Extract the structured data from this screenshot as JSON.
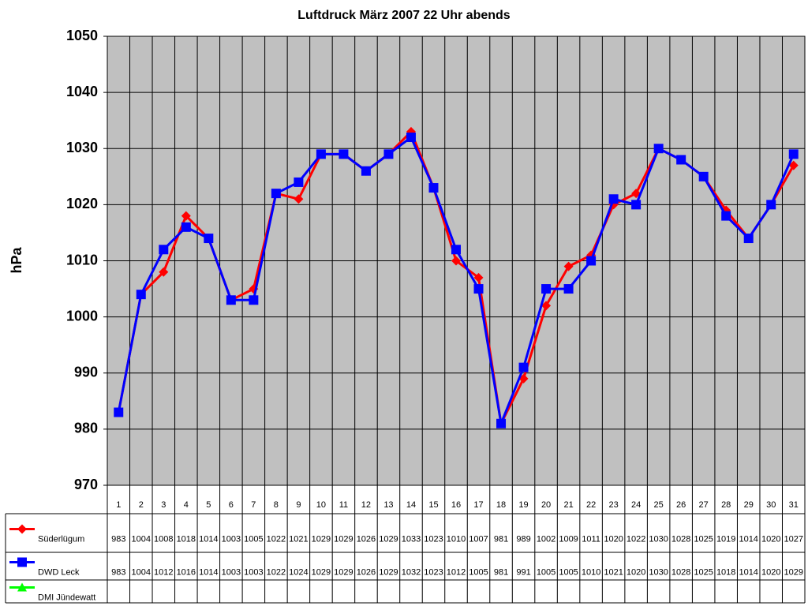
{
  "chart_data": {
    "type": "line",
    "title": "Luftdruck März 2007 22 Uhr abends",
    "y_label": "hPa",
    "categories": [
      "1",
      "2",
      "3",
      "4",
      "5",
      "6",
      "7",
      "8",
      "9",
      "10",
      "11",
      "12",
      "13",
      "14",
      "15",
      "16",
      "17",
      "18",
      "19",
      "20",
      "21",
      "22",
      "23",
      "24",
      "25",
      "26",
      "27",
      "28",
      "29",
      "30",
      "31"
    ],
    "series": [
      {
        "name": "Süderlügum",
        "color": "#ff0000",
        "marker": "diamond",
        "values": [
          983,
          1004,
          1008,
          1018,
          1014,
          1003,
          1005,
          1022,
          1021,
          1029,
          1029,
          1026,
          1029,
          1033,
          1023,
          1010,
          1007,
          981,
          989,
          1002,
          1009,
          1011,
          1020,
          1022,
          1030,
          1028,
          1025,
          1019,
          1014,
          1020,
          1027
        ]
      },
      {
        "name": "DWD Leck",
        "color": "#0000ff",
        "marker": "square",
        "values": [
          983,
          1004,
          1012,
          1016,
          1014,
          1003,
          1003,
          1022,
          1024,
          1029,
          1029,
          1026,
          1029,
          1032,
          1023,
          1012,
          1005,
          981,
          991,
          1005,
          1005,
          1010,
          1021,
          1020,
          1030,
          1028,
          1025,
          1018,
          1014,
          1020,
          1029
        ]
      },
      {
        "name": "DMI Jündewatt",
        "color": "#00ff00",
        "marker": "triangle",
        "values": [
          null,
          null,
          null,
          null,
          null,
          null,
          null,
          null,
          null,
          null,
          null,
          null,
          null,
          null,
          null,
          null,
          null,
          null,
          null,
          null,
          null,
          null,
          null,
          null,
          null,
          null,
          null,
          null,
          null,
          null,
          null
        ]
      }
    ],
    "ylim": [
      970,
      1050
    ],
    "yticks": [
      970,
      980,
      990,
      1000,
      1010,
      1020,
      1030,
      1040,
      1050
    ],
    "grid": true,
    "plot_background": "#c0c0c0"
  }
}
